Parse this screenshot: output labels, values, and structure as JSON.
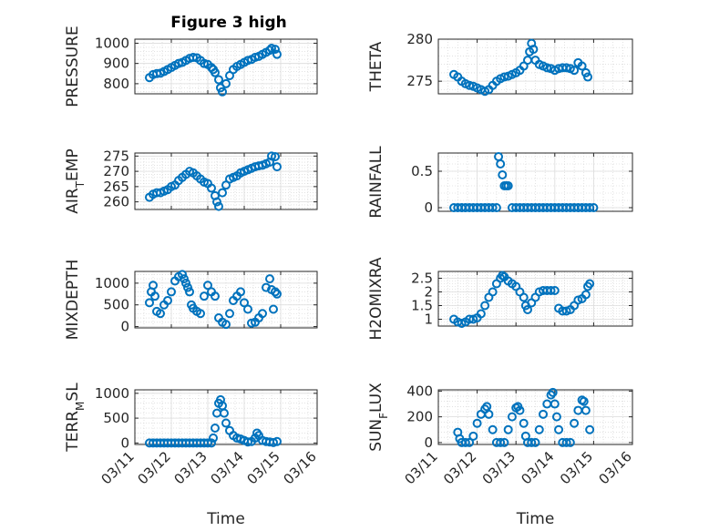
{
  "figure": {
    "title": "Figure 3 high",
    "marker_color": "#0072BD"
  },
  "chart_data": [
    {
      "type": "scatter",
      "title": "Figure 3 high",
      "ylabel": "PRESSURE",
      "ylim": [
        750,
        1020
      ],
      "yticks": [
        800,
        900,
        1000
      ],
      "xlim": [
        "03/11",
        "03/16"
      ],
      "grid": "on",
      "points": [
        [
          11.4,
          830
        ],
        [
          11.5,
          845
        ],
        [
          11.6,
          850
        ],
        [
          11.7,
          852
        ],
        [
          11.8,
          860
        ],
        [
          11.9,
          870
        ],
        [
          12.0,
          880
        ],
        [
          12.1,
          890
        ],
        [
          12.2,
          900
        ],
        [
          12.3,
          905
        ],
        [
          12.4,
          915
        ],
        [
          12.5,
          925
        ],
        [
          12.6,
          930
        ],
        [
          12.7,
          928
        ],
        [
          12.8,
          915
        ],
        [
          12.9,
          900
        ],
        [
          13.0,
          895
        ],
        [
          13.1,
          880
        ],
        [
          13.15,
          870
        ],
        [
          13.2,
          855
        ],
        [
          13.3,
          820
        ],
        [
          13.35,
          780
        ],
        [
          13.4,
          760
        ],
        [
          13.5,
          800
        ],
        [
          13.6,
          840
        ],
        [
          13.7,
          870
        ],
        [
          13.8,
          885
        ],
        [
          13.9,
          895
        ],
        [
          14.0,
          905
        ],
        [
          14.1,
          915
        ],
        [
          14.2,
          920
        ],
        [
          14.3,
          930
        ],
        [
          14.4,
          935
        ],
        [
          14.5,
          945
        ],
        [
          14.6,
          955
        ],
        [
          14.7,
          965
        ],
        [
          14.75,
          975
        ],
        [
          14.85,
          970
        ],
        [
          14.9,
          945
        ]
      ]
    },
    {
      "type": "scatter",
      "ylabel": "THETA",
      "ylim": [
        273.5,
        280
      ],
      "yticks": [
        275,
        280
      ],
      "xlim": [
        "03/11",
        "03/16"
      ],
      "grid": "on",
      "points": [
        [
          11.4,
          275.8
        ],
        [
          11.5,
          275.5
        ],
        [
          11.6,
          275.0
        ],
        [
          11.7,
          274.7
        ],
        [
          11.8,
          274.5
        ],
        [
          11.9,
          274.4
        ],
        [
          12.0,
          274.2
        ],
        [
          12.1,
          274.0
        ],
        [
          12.2,
          273.8
        ],
        [
          12.3,
          274.0
        ],
        [
          12.4,
          274.5
        ],
        [
          12.5,
          275.0
        ],
        [
          12.6,
          275.3
        ],
        [
          12.7,
          275.5
        ],
        [
          12.8,
          275.6
        ],
        [
          12.9,
          275.8
        ],
        [
          13.0,
          276.0
        ],
        [
          13.1,
          276.3
        ],
        [
          13.2,
          276.8
        ],
        [
          13.3,
          277.5
        ],
        [
          13.35,
          278.5
        ],
        [
          13.4,
          279.5
        ],
        [
          13.45,
          278.8
        ],
        [
          13.5,
          277.5
        ],
        [
          13.6,
          277.0
        ],
        [
          13.7,
          276.8
        ],
        [
          13.8,
          276.6
        ],
        [
          13.9,
          276.5
        ],
        [
          14.0,
          276.3
        ],
        [
          14.1,
          276.5
        ],
        [
          14.2,
          276.6
        ],
        [
          14.3,
          276.6
        ],
        [
          14.4,
          276.5
        ],
        [
          14.5,
          276.3
        ],
        [
          14.6,
          277.2
        ],
        [
          14.7,
          276.8
        ],
        [
          14.8,
          276.0
        ],
        [
          14.85,
          275.5
        ]
      ]
    },
    {
      "type": "scatter",
      "ylabel": "AIR_TEMP",
      "ylim": [
        257.5,
        276
      ],
      "yticks": [
        260,
        265,
        270,
        275
      ],
      "xlim": [
        "03/11",
        "03/16"
      ],
      "grid": "on",
      "points": [
        [
          11.4,
          261.5
        ],
        [
          11.5,
          262.5
        ],
        [
          11.6,
          263.0
        ],
        [
          11.7,
          263.0
        ],
        [
          11.8,
          263.5
        ],
        [
          11.9,
          264.0
        ],
        [
          12.0,
          265.0
        ],
        [
          12.1,
          265.5
        ],
        [
          12.2,
          267.0
        ],
        [
          12.3,
          268.0
        ],
        [
          12.4,
          269.0
        ],
        [
          12.5,
          270.0
        ],
        [
          12.6,
          269.5
        ],
        [
          12.7,
          268.5
        ],
        [
          12.8,
          267.5
        ],
        [
          12.9,
          266.5
        ],
        [
          13.0,
          266.0
        ],
        [
          13.1,
          264.5
        ],
        [
          13.2,
          262.0
        ],
        [
          13.25,
          260.0
        ],
        [
          13.3,
          258.5
        ],
        [
          13.4,
          263.0
        ],
        [
          13.5,
          265.5
        ],
        [
          13.6,
          267.5
        ],
        [
          13.7,
          268.0
        ],
        [
          13.8,
          268.5
        ],
        [
          13.9,
          269.5
        ],
        [
          14.0,
          270.0
        ],
        [
          14.1,
          270.5
        ],
        [
          14.2,
          271.0
        ],
        [
          14.3,
          271.5
        ],
        [
          14.4,
          271.8
        ],
        [
          14.5,
          272.0
        ],
        [
          14.6,
          272.5
        ],
        [
          14.7,
          273.0
        ],
        [
          14.75,
          275.0
        ],
        [
          14.85,
          274.8
        ],
        [
          14.9,
          271.5
        ]
      ]
    },
    {
      "type": "scatter",
      "ylabel": "RAINFALL",
      "ylim": [
        -0.05,
        0.75
      ],
      "yticks": [
        0,
        0.5
      ],
      "xlim": [
        "03/11",
        "03/16"
      ],
      "grid": "on",
      "points": [
        [
          11.4,
          0
        ],
        [
          11.5,
          0
        ],
        [
          11.6,
          0
        ],
        [
          11.7,
          0
        ],
        [
          11.8,
          0
        ],
        [
          11.9,
          0
        ],
        [
          12.0,
          0
        ],
        [
          12.1,
          0
        ],
        [
          12.2,
          0
        ],
        [
          12.3,
          0
        ],
        [
          12.4,
          0
        ],
        [
          12.5,
          0
        ],
        [
          12.55,
          0.7
        ],
        [
          12.6,
          0.6
        ],
        [
          12.65,
          0.45
        ],
        [
          12.7,
          0.3
        ],
        [
          12.75,
          0.3
        ],
        [
          12.8,
          0.3
        ],
        [
          12.9,
          0
        ],
        [
          13.0,
          0
        ],
        [
          13.1,
          0
        ],
        [
          13.2,
          0
        ],
        [
          13.3,
          0
        ],
        [
          13.4,
          0
        ],
        [
          13.5,
          0
        ],
        [
          13.6,
          0
        ],
        [
          13.7,
          0
        ],
        [
          13.8,
          0
        ],
        [
          13.9,
          0
        ],
        [
          14.0,
          0
        ],
        [
          14.1,
          0
        ],
        [
          14.2,
          0
        ],
        [
          14.3,
          0
        ],
        [
          14.4,
          0
        ],
        [
          14.5,
          0
        ],
        [
          14.6,
          0
        ],
        [
          14.7,
          0
        ],
        [
          14.8,
          0
        ],
        [
          14.9,
          0
        ],
        [
          15.0,
          0
        ]
      ]
    },
    {
      "type": "scatter",
      "ylabel": "MIXDEPTH",
      "ylim": [
        -30,
        1270
      ],
      "yticks": [
        0,
        500,
        1000
      ],
      "xlim": [
        "03/11",
        "03/16"
      ],
      "grid": "on",
      "points": [
        [
          11.4,
          550
        ],
        [
          11.45,
          800
        ],
        [
          11.5,
          950
        ],
        [
          11.55,
          700
        ],
        [
          11.6,
          350
        ],
        [
          11.7,
          300
        ],
        [
          11.8,
          500
        ],
        [
          11.9,
          600
        ],
        [
          12.0,
          800
        ],
        [
          12.1,
          1050
        ],
        [
          12.2,
          1150
        ],
        [
          12.3,
          1200
        ],
        [
          12.35,
          1100
        ],
        [
          12.4,
          1000
        ],
        [
          12.45,
          900
        ],
        [
          12.5,
          800
        ],
        [
          12.55,
          500
        ],
        [
          12.6,
          420
        ],
        [
          12.7,
          350
        ],
        [
          12.8,
          300
        ],
        [
          12.9,
          700
        ],
        [
          13.0,
          950
        ],
        [
          13.1,
          800
        ],
        [
          13.2,
          700
        ],
        [
          13.3,
          200
        ],
        [
          13.4,
          100
        ],
        [
          13.5,
          50
        ],
        [
          13.6,
          300
        ],
        [
          13.7,
          600
        ],
        [
          13.8,
          700
        ],
        [
          13.9,
          800
        ],
        [
          14.0,
          550
        ],
        [
          14.1,
          400
        ],
        [
          14.2,
          80
        ],
        [
          14.3,
          100
        ],
        [
          14.4,
          200
        ],
        [
          14.5,
          300
        ],
        [
          14.6,
          900
        ],
        [
          14.7,
          1100
        ],
        [
          14.75,
          850
        ],
        [
          14.8,
          400
        ],
        [
          14.85,
          800
        ],
        [
          14.9,
          750
        ]
      ]
    },
    {
      "type": "scatter",
      "ylabel": "H2OMIXRA",
      "ylim": [
        0.75,
        2.75
      ],
      "yticks": [
        1,
        1.5,
        2,
        2.5
      ],
      "xlim": [
        "03/11",
        "03/16"
      ],
      "grid": "on",
      "points": [
        [
          11.4,
          1.0
        ],
        [
          11.5,
          0.9
        ],
        [
          11.6,
          0.85
        ],
        [
          11.7,
          0.9
        ],
        [
          11.8,
          1.0
        ],
        [
          11.9,
          1.0
        ],
        [
          12.0,
          1.05
        ],
        [
          12.1,
          1.2
        ],
        [
          12.2,
          1.5
        ],
        [
          12.3,
          1.8
        ],
        [
          12.4,
          2.0
        ],
        [
          12.5,
          2.3
        ],
        [
          12.6,
          2.5
        ],
        [
          12.65,
          2.6
        ],
        [
          12.7,
          2.55
        ],
        [
          12.8,
          2.4
        ],
        [
          12.9,
          2.3
        ],
        [
          13.0,
          2.2
        ],
        [
          13.1,
          2.0
        ],
        [
          13.2,
          1.8
        ],
        [
          13.25,
          1.5
        ],
        [
          13.3,
          1.35
        ],
        [
          13.4,
          1.6
        ],
        [
          13.5,
          1.8
        ],
        [
          13.6,
          2.0
        ],
        [
          13.7,
          2.05
        ],
        [
          13.8,
          2.05
        ],
        [
          13.9,
          2.05
        ],
        [
          14.0,
          2.05
        ],
        [
          14.1,
          1.4
        ],
        [
          14.2,
          1.3
        ],
        [
          14.3,
          1.3
        ],
        [
          14.4,
          1.35
        ],
        [
          14.5,
          1.5
        ],
        [
          14.6,
          1.7
        ],
        [
          14.7,
          1.75
        ],
        [
          14.8,
          1.9
        ],
        [
          14.85,
          2.2
        ],
        [
          14.9,
          2.3
        ]
      ]
    },
    {
      "type": "scatter",
      "ylabel": "TERR_MSL",
      "ylim": [
        -30,
        1070
      ],
      "yticks": [
        0,
        500,
        1000
      ],
      "xlim": [
        "03/11",
        "03/16"
      ],
      "xlabel": "Time",
      "xticklabels": [
        "03/11",
        "03/12",
        "03/13",
        "03/14",
        "03/15",
        "03/16"
      ],
      "grid": "on",
      "points": [
        [
          11.4,
          0
        ],
        [
          11.5,
          0
        ],
        [
          11.6,
          0
        ],
        [
          11.7,
          0
        ],
        [
          11.8,
          0
        ],
        [
          11.9,
          0
        ],
        [
          12.0,
          0
        ],
        [
          12.1,
          0
        ],
        [
          12.2,
          0
        ],
        [
          12.3,
          0
        ],
        [
          12.4,
          0
        ],
        [
          12.5,
          0
        ],
        [
          12.6,
          0
        ],
        [
          12.7,
          0
        ],
        [
          12.8,
          0
        ],
        [
          12.9,
          0
        ],
        [
          13.0,
          0
        ],
        [
          13.1,
          0
        ],
        [
          13.15,
          100
        ],
        [
          13.2,
          300
        ],
        [
          13.25,
          600
        ],
        [
          13.3,
          800
        ],
        [
          13.35,
          870
        ],
        [
          13.4,
          750
        ],
        [
          13.45,
          600
        ],
        [
          13.5,
          400
        ],
        [
          13.6,
          250
        ],
        [
          13.7,
          150
        ],
        [
          13.8,
          100
        ],
        [
          13.9,
          80
        ],
        [
          14.0,
          50
        ],
        [
          14.1,
          20
        ],
        [
          14.2,
          30
        ],
        [
          14.3,
          100
        ],
        [
          14.35,
          200
        ],
        [
          14.4,
          150
        ],
        [
          14.5,
          50
        ],
        [
          14.6,
          30
        ],
        [
          14.7,
          20
        ],
        [
          14.8,
          10
        ],
        [
          14.9,
          30
        ]
      ]
    },
    {
      "type": "scatter",
      "ylabel": "SUN_FLUX",
      "ylim": [
        -15,
        410
      ],
      "yticks": [
        0,
        200,
        400
      ],
      "xlim": [
        "03/11",
        "03/16"
      ],
      "xlabel": "Time",
      "xticklabels": [
        "03/11",
        "03/12",
        "03/13",
        "03/14",
        "03/15",
        "03/16"
      ],
      "grid": "on",
      "points": [
        [
          11.5,
          80
        ],
        [
          11.55,
          30
        ],
        [
          11.6,
          0
        ],
        [
          11.7,
          0
        ],
        [
          11.8,
          0
        ],
        [
          11.9,
          50
        ],
        [
          12.0,
          150
        ],
        [
          12.1,
          220
        ],
        [
          12.2,
          260
        ],
        [
          12.25,
          280
        ],
        [
          12.3,
          220
        ],
        [
          12.4,
          100
        ],
        [
          12.5,
          0
        ],
        [
          12.6,
          0
        ],
        [
          12.7,
          0
        ],
        [
          12.8,
          100
        ],
        [
          12.9,
          200
        ],
        [
          13.0,
          270
        ],
        [
          13.05,
          280
        ],
        [
          13.1,
          250
        ],
        [
          13.2,
          150
        ],
        [
          13.25,
          50
        ],
        [
          13.3,
          0
        ],
        [
          13.4,
          0
        ],
        [
          13.5,
          0
        ],
        [
          13.6,
          100
        ],
        [
          13.7,
          220
        ],
        [
          13.8,
          300
        ],
        [
          13.9,
          370
        ],
        [
          13.95,
          390
        ],
        [
          14.0,
          300
        ],
        [
          14.05,
          200
        ],
        [
          14.1,
          100
        ],
        [
          14.2,
          0
        ],
        [
          14.3,
          0
        ],
        [
          14.4,
          0
        ],
        [
          14.5,
          150
        ],
        [
          14.6,
          250
        ],
        [
          14.7,
          330
        ],
        [
          14.75,
          320
        ],
        [
          14.8,
          250
        ],
        [
          14.9,
          100
        ]
      ]
    }
  ]
}
